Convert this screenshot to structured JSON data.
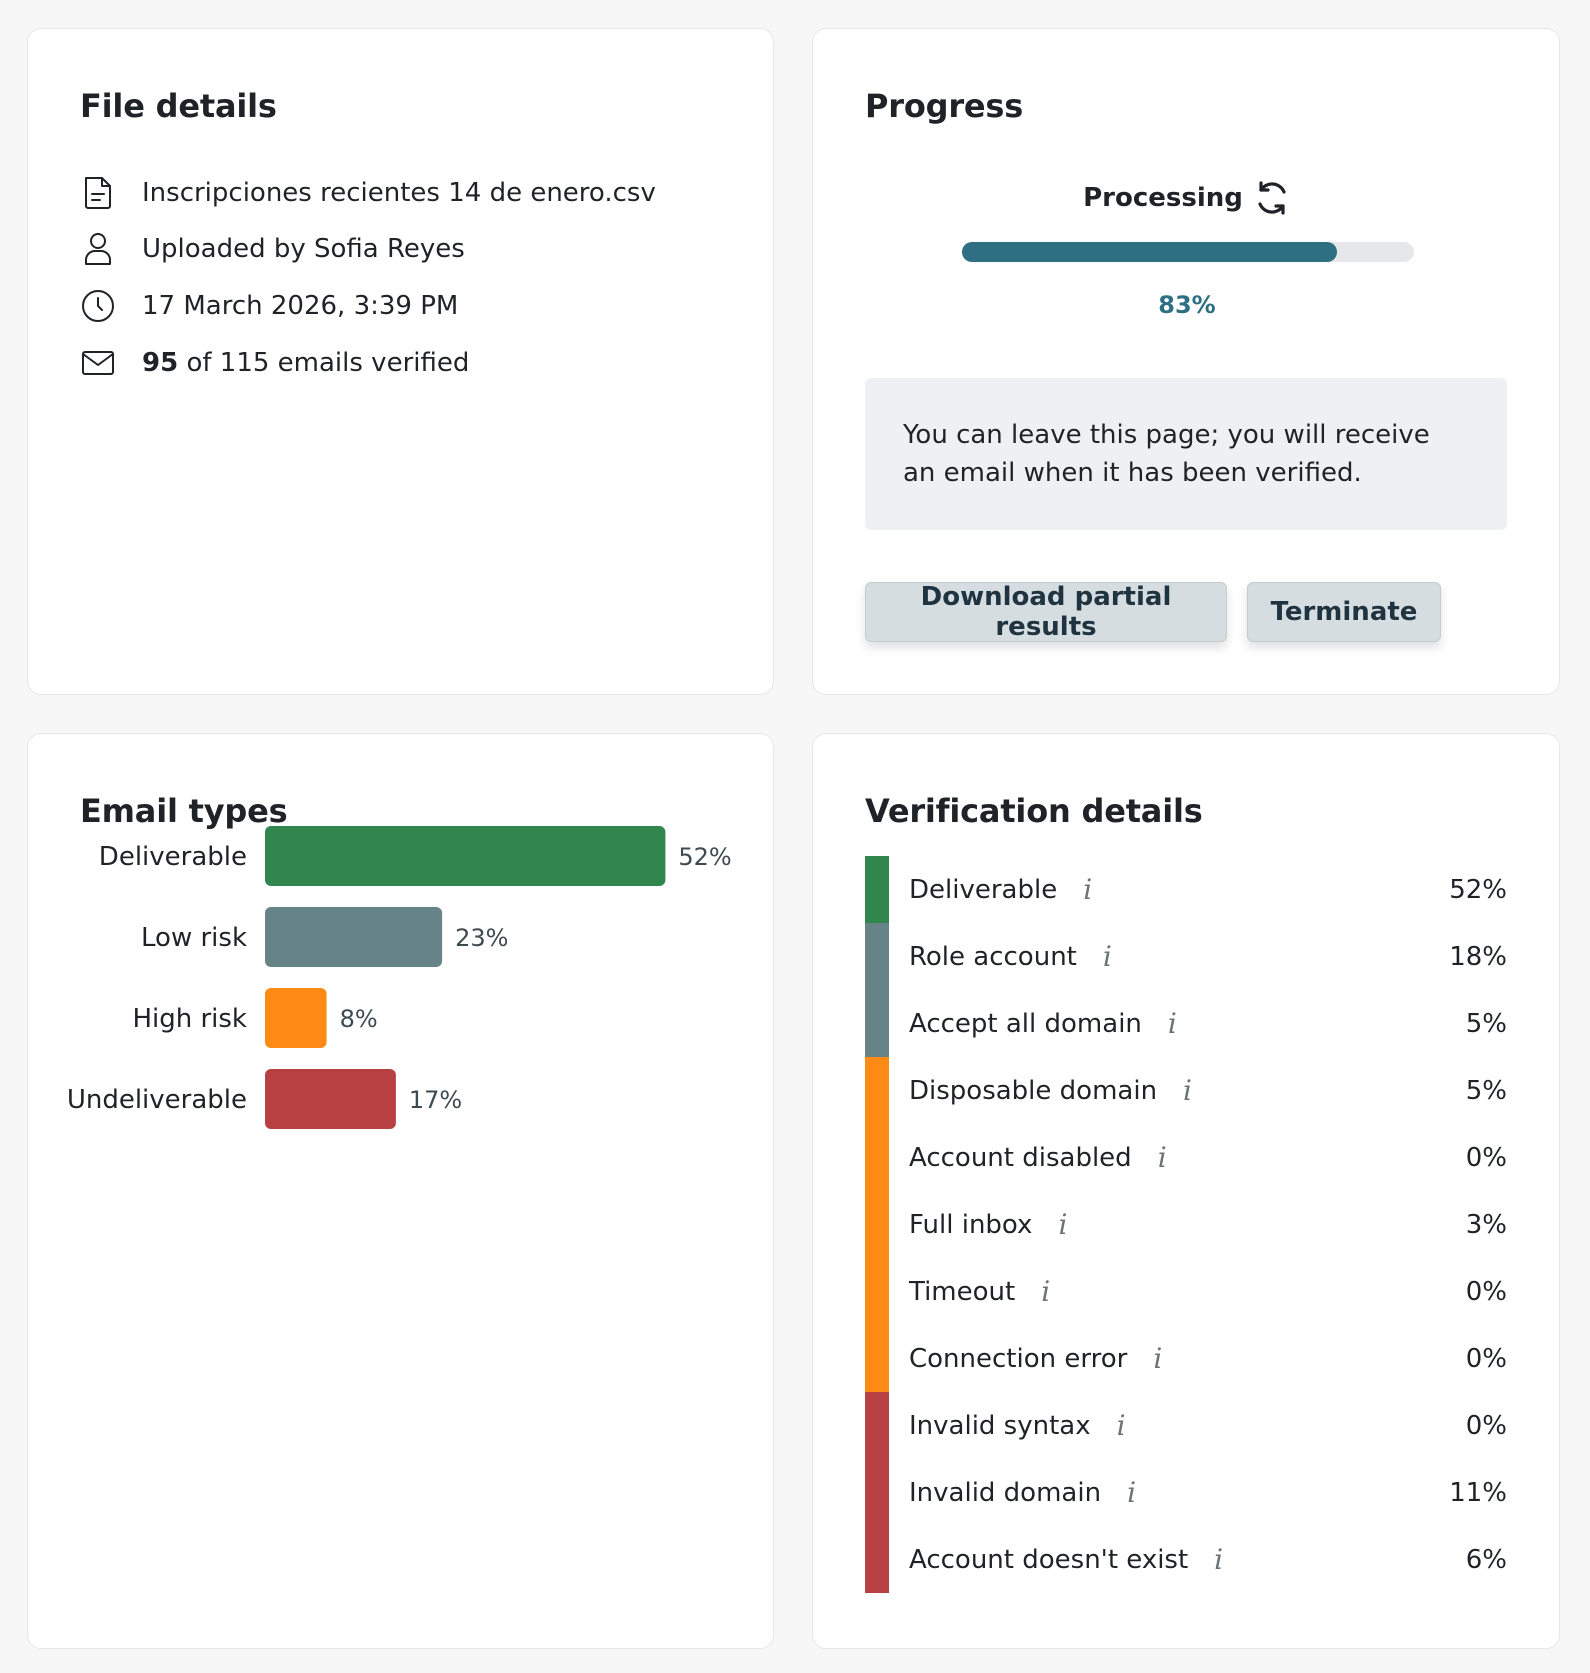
{
  "file_details": {
    "title": "File details",
    "filename": "Inscripciones recientes 14 de enero.csv",
    "uploaded_by": "Uploaded by Sofia Reyes",
    "timestamp": "17 March 2026, 3:39 PM",
    "verified_count": "95",
    "verified_rest": " of 115 emails verified",
    "icons": [
      "file-icon",
      "user-icon",
      "clock-icon",
      "mail-icon"
    ]
  },
  "progress": {
    "title": "Progress",
    "status": "Processing",
    "percent_value": 83,
    "percent_label": "83%",
    "message": "You can leave this page; you will receive an email when it has been verified.",
    "download_label": "Download partial results",
    "terminate_label": "Terminate",
    "accent_color": "#2e6f83"
  },
  "email_types": {
    "title": "Email types"
  },
  "chart_data": {
    "type": "bar",
    "orientation": "horizontal",
    "categories": [
      "Deliverable",
      "Low risk",
      "High risk",
      "Undeliverable"
    ],
    "values": [
      52,
      23,
      8,
      17
    ],
    "value_labels": [
      "52%",
      "23%",
      "8%",
      "17%"
    ],
    "colors": [
      "#30864c",
      "#668488",
      "#fd8a14",
      "#b84042"
    ],
    "title": "",
    "xlabel": "",
    "ylabel": "",
    "xlim": [
      0,
      100
    ],
    "grid": false,
    "legend": "none"
  },
  "verification": {
    "title": "Verification details",
    "info_glyph": "i",
    "rows": [
      {
        "label": "Deliverable",
        "pct": "52%",
        "group": "deliverable"
      },
      {
        "label": "Role account",
        "pct": "18%",
        "group": "low"
      },
      {
        "label": "Accept all domain",
        "pct": "5%",
        "group": "low"
      },
      {
        "label": "Disposable domain",
        "pct": "5%",
        "group": "high"
      },
      {
        "label": "Account disabled",
        "pct": "0%",
        "group": "high"
      },
      {
        "label": "Full inbox",
        "pct": "3%",
        "group": "high"
      },
      {
        "label": "Timeout",
        "pct": "0%",
        "group": "high"
      },
      {
        "label": "Connection error",
        "pct": "0%",
        "group": "high"
      },
      {
        "label": "Invalid syntax",
        "pct": "0%",
        "group": "undeliverable"
      },
      {
        "label": "Invalid domain",
        "pct": "11%",
        "group": "undeliverable"
      },
      {
        "label": "Account doesn't exist",
        "pct": "6%",
        "group": "undeliverable"
      }
    ],
    "group_colors": {
      "deliverable": "#30864c",
      "low": "#668488",
      "high": "#fd8a14",
      "undeliverable": "#b84042"
    }
  }
}
